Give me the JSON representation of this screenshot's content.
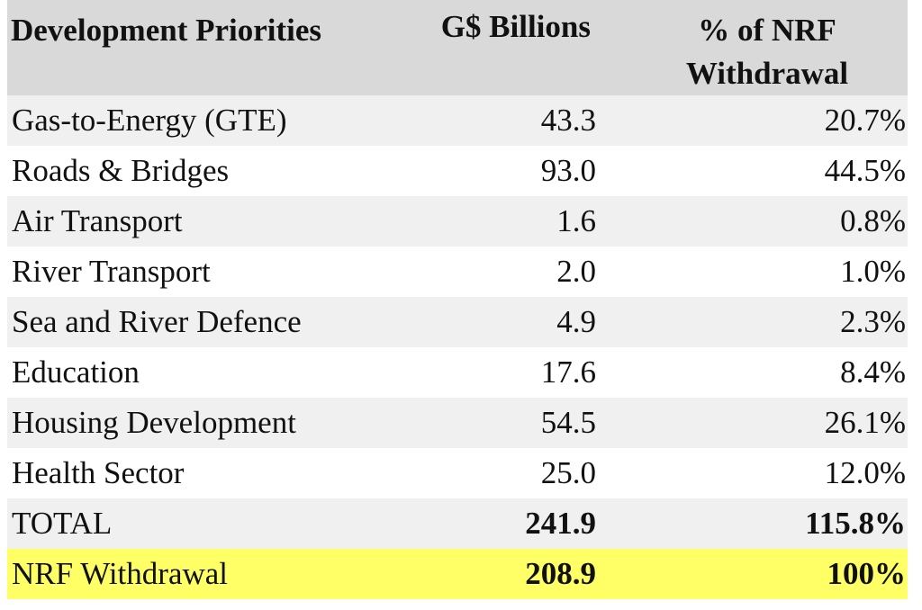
{
  "chart_data": {
    "type": "table",
    "columns": [
      "Development Priorities",
      "G$ Billions",
      "% of NRF Withdrawal"
    ],
    "rows": [
      {
        "name": "Gas-to-Energy (GTE)",
        "value": "43.3",
        "pct": "20.7%"
      },
      {
        "name": "Roads & Bridges",
        "value": "93.0",
        "pct": "44.5%"
      },
      {
        "name": "Air Transport",
        "value": "1.6",
        "pct": "0.8%"
      },
      {
        "name": "River Transport",
        "value": "2.0",
        "pct": "1.0%"
      },
      {
        "name": "Sea and River Defence",
        "value": "4.9",
        "pct": "2.3%"
      },
      {
        "name": "Education",
        "value": "17.6",
        "pct": "8.4%"
      },
      {
        "name": "Housing Development",
        "value": "54.5",
        "pct": "26.1%"
      },
      {
        "name": "Health Sector",
        "value": "25.0",
        "pct": "12.0%"
      }
    ],
    "total": {
      "name": "TOTAL",
      "value": "241.9",
      "pct": "115.8%"
    },
    "withdrawal": {
      "name": "NRF Withdrawal",
      "value": "208.9",
      "pct": "100%"
    }
  },
  "colors": {
    "header_bg": "#d9d9d9",
    "row_alt_bg": "#f0f0f0",
    "highlight_bg": "#ffff66"
  }
}
